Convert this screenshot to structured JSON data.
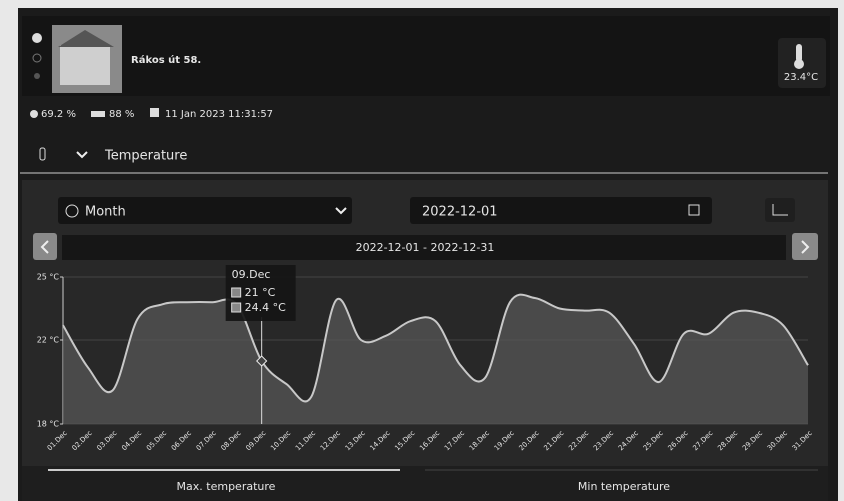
{
  "header": {
    "title": "Rákos út 58.",
    "temperature": "23.4°C"
  },
  "status": {
    "humidity": "69.2 %",
    "battery": "88 %",
    "timestamp": "11 Jan 2023 11:31:57"
  },
  "section": {
    "title": "Temperature"
  },
  "controls": {
    "period": "Month",
    "date": "2022-12-01",
    "range": "2022-12-01 - 2022-12-31"
  },
  "chart_data": {
    "type": "area",
    "categories": [
      "01.Dec",
      "02.Dec",
      "03.Dec",
      "04.Dec",
      "05.Dec",
      "06.Dec",
      "07.Dec",
      "08.Dec",
      "09.Dec",
      "10.Dec",
      "11.Dec",
      "12.Dec",
      "13.Dec",
      "14.Dec",
      "15.Dec",
      "16.Dec",
      "17.Dec",
      "18.Dec",
      "19.Dec",
      "20.Dec",
      "21.Dec",
      "22.Dec",
      "23.Dec",
      "24.Dec",
      "25.Dec",
      "26.Dec",
      "27.Dec",
      "28.Dec",
      "29.Dec",
      "30.Dec",
      "31.Dec"
    ],
    "values": [
      22.7,
      20.7,
      19.6,
      23.0,
      23.7,
      23.8,
      23.8,
      23.7,
      21,
      19.9,
      19.3,
      23.9,
      22.0,
      22.2,
      22.9,
      22.9,
      20.8,
      20.2,
      23.8,
      24.0,
      23.5,
      23.4,
      23.3,
      21.8,
      20.0,
      22.3,
      22.3,
      23.3,
      23.3,
      22.7,
      20.8
    ],
    "color": "#c8c8c8",
    "ylim": [
      18,
      25
    ],
    "yticks": [
      {
        "value": 18,
        "label": "18 °C"
      },
      {
        "value": 22,
        "label": "22 °C"
      },
      {
        "value": 25,
        "label": "25 °C"
      }
    ],
    "grid": true,
    "tooltip": {
      "title": "09.Dec",
      "items": [
        "21 °C",
        "24.4 °C"
      ]
    }
  },
  "tabs": [
    "Max. temperature",
    "Min temperature"
  ]
}
